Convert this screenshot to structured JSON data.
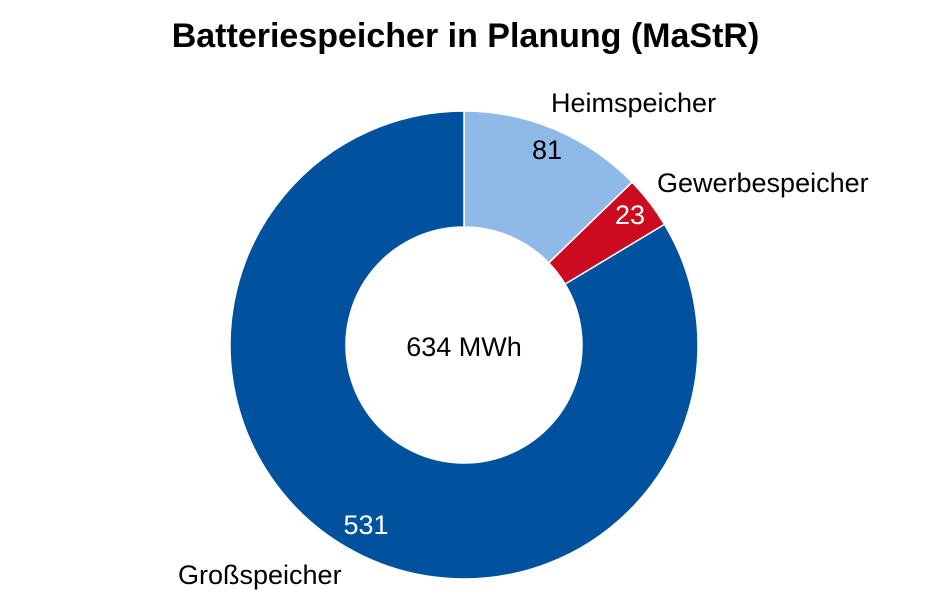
{
  "chart_data": {
    "type": "pie",
    "style": "donut",
    "title": "Batteriespeicher in Planung (MaStR)",
    "center_label": "634 MWh",
    "unit": "MWh",
    "total": 634,
    "slices": [
      {
        "label": "Heimspeicher",
        "value": 81,
        "value_label": "81",
        "color": "#8fb9e6",
        "value_text_color": "#000000"
      },
      {
        "label": "Gewerbespeicher",
        "value": 23,
        "value_label": "23",
        "color": "#cc0a20",
        "value_text_color": "#ffffff"
      },
      {
        "label": "Großspeicher",
        "value": 531,
        "value_label": "531",
        "color": "#00519e",
        "value_text_color": "#ffffff"
      }
    ],
    "legend": "none"
  }
}
